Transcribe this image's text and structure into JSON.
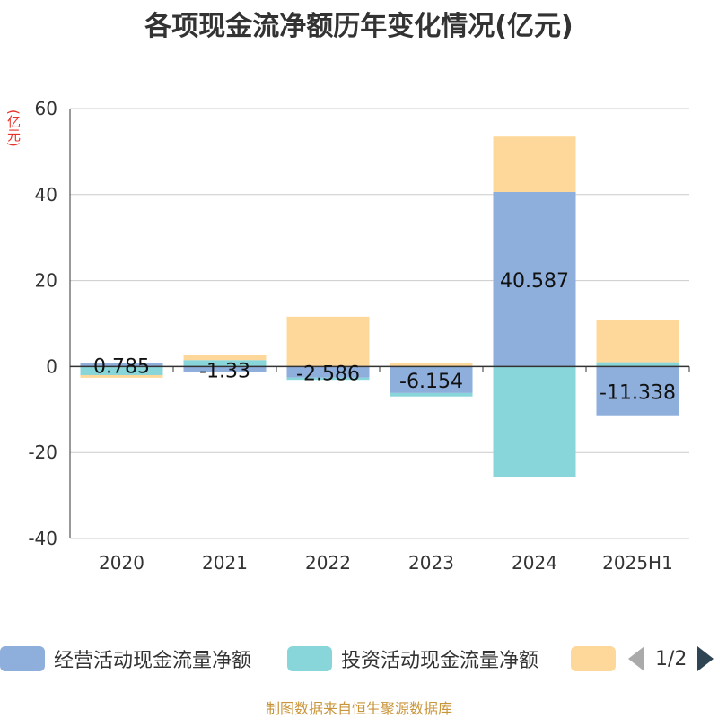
{
  "page": {
    "title": "各项现金流净额历年变化情况(亿元)",
    "unit_label": "(亿元)",
    "source": "制图数据来自恒生聚源数据库"
  },
  "legend": {
    "items": [
      {
        "label": "经营活动现金流量净额",
        "color": "#8eaedb"
      },
      {
        "label": "投资活动现金流量净额",
        "color": "#88d6d9"
      },
      {
        "label": "",
        "color": "#fdd89a"
      }
    ],
    "page_indicator": "1/2"
  },
  "chart_data": {
    "type": "bar",
    "stacked": true,
    "title": "各项现金流净额历年变化情况(亿元)",
    "ylabel": "(亿元)",
    "ylim": [
      -40,
      60
    ],
    "yticks": [
      60,
      40,
      20,
      0,
      -20,
      -40
    ],
    "categories": [
      "2020",
      "2021",
      "2022",
      "2023",
      "2024",
      "2025H1"
    ],
    "series": [
      {
        "name": "经营活动现金流量净额",
        "color": "#8eaedb",
        "values": [
          0.785,
          -1.33,
          -2.586,
          -6.154,
          40.587,
          -11.338
        ],
        "labels": [
          "0.785",
          "-1.33",
          "-2.586",
          "-6.154",
          "40.587",
          "-11.338"
        ]
      },
      {
        "name": "投资活动现金流量净额",
        "color": "#88d6d9",
        "values": [
          -2.0,
          1.5,
          -0.5,
          -0.8,
          -25.7,
          1.0
        ]
      },
      {
        "name": "",
        "color": "#fdd89a",
        "values": [
          -0.6,
          1.1,
          11.6,
          0.9,
          12.9,
          9.9
        ]
      }
    ]
  }
}
